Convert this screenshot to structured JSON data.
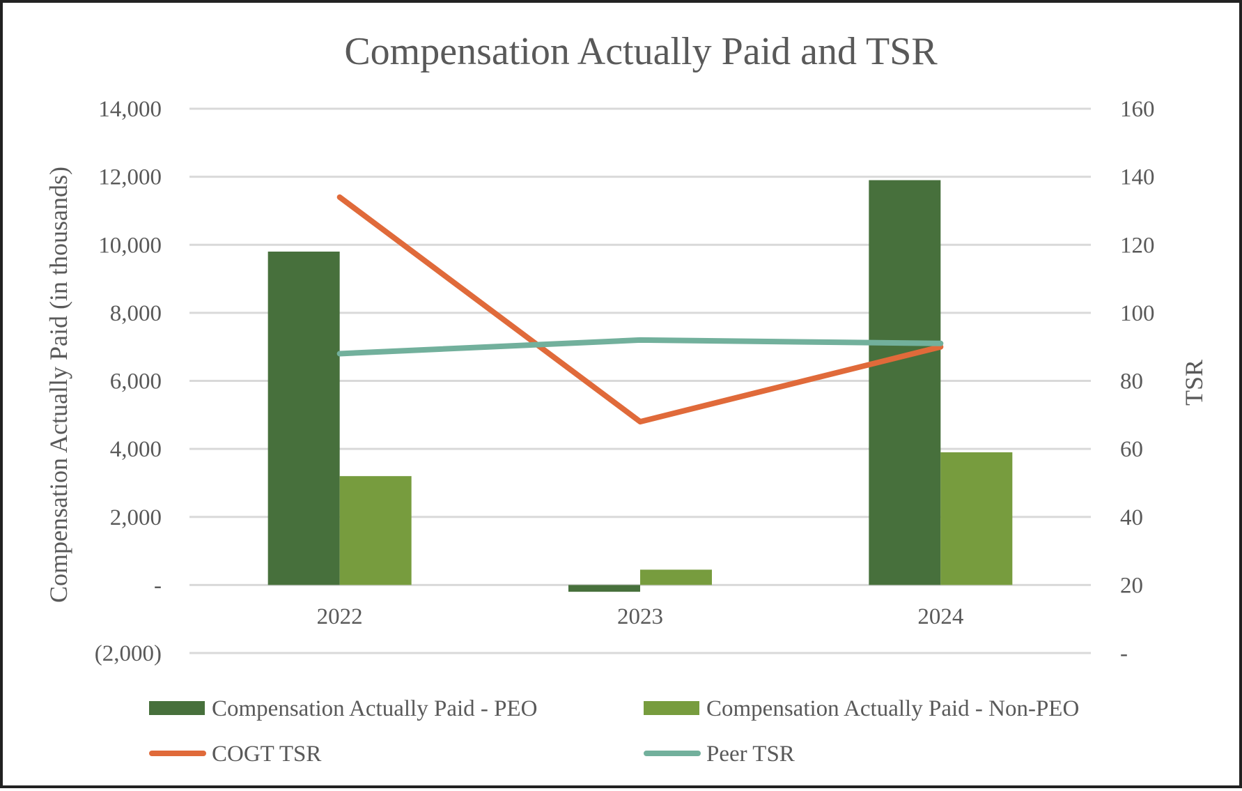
{
  "chart_data": {
    "type": "bar",
    "title": "Compensation Actually Paid and TSR",
    "categories": [
      "2022",
      "2023",
      "2024"
    ],
    "y_left": {
      "label": "Compensation Actually Paid (in thousands)",
      "range": [
        -2000,
        14000
      ],
      "ticks": [
        -2000,
        0,
        2000,
        4000,
        6000,
        8000,
        10000,
        12000,
        14000
      ],
      "tick_labels": [
        "(2,000)",
        "-",
        "2,000",
        "4,000",
        "6,000",
        "8,000",
        "10,000",
        "12,000",
        "14,000"
      ]
    },
    "y_right": {
      "label": "TSR",
      "range": [
        0,
        160
      ],
      "ticks": [
        0,
        20,
        40,
        60,
        80,
        100,
        120,
        140,
        160
      ],
      "tick_labels": [
        "-",
        "20",
        "40",
        "60",
        "80",
        "100",
        "120",
        "140",
        "160"
      ]
    },
    "grid": true,
    "bar_series": [
      {
        "name": "Compensation Actually Paid - PEO",
        "color": "#47703c",
        "values": [
          9800,
          -200,
          11900
        ]
      },
      {
        "name": "Compensation Actually Paid - Non-PEO",
        "color": "#779c3e",
        "values": [
          3200,
          450,
          3900
        ]
      }
    ],
    "line_series": [
      {
        "name": "COGT TSR",
        "color": "#e06a3a",
        "axis": "right",
        "values": [
          134,
          68,
          90
        ]
      },
      {
        "name": "Peer TSR",
        "color": "#72b09c",
        "axis": "right",
        "values": [
          88,
          92,
          91
        ]
      }
    ],
    "legend_position": "bottom",
    "legend": [
      {
        "label": "Compensation Actually Paid - PEO",
        "kind": "bar",
        "color": "#47703c"
      },
      {
        "label": "Compensation Actually Paid - Non-PEO",
        "kind": "bar",
        "color": "#779c3e"
      },
      {
        "label": "COGT TSR",
        "kind": "line",
        "color": "#e06a3a"
      },
      {
        "label": "Peer TSR",
        "kind": "line",
        "color": "#72b09c"
      }
    ]
  }
}
